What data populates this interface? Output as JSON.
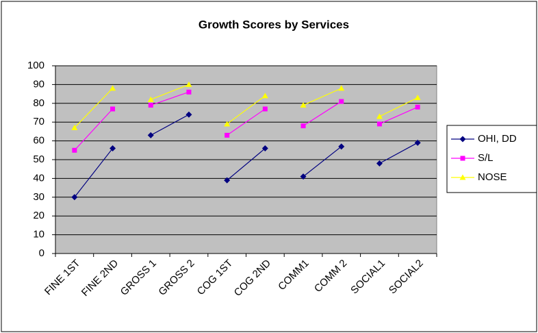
{
  "chart_data": {
    "type": "line",
    "title": "Growth Scores by Services",
    "categories": [
      "FINE 1ST",
      "FINE 2ND",
      "GROSS 1",
      "GROSS 2",
      "COG 1ST",
      "COG 2ND",
      "COMM1",
      "COMM 2",
      "SOCIAL1",
      "SOCIAL2"
    ],
    "series": [
      {
        "name": "OHI, DD",
        "color": "#000080",
        "marker": "diamond",
        "values": [
          30,
          56,
          63,
          74,
          39,
          56,
          41,
          57,
          48,
          59
        ]
      },
      {
        "name": "S/L",
        "color": "#ff00ff",
        "marker": "square",
        "values": [
          55,
          77,
          79,
          86,
          63,
          77,
          68,
          81,
          69,
          78
        ]
      },
      {
        "name": "NOSE",
        "color": "#ffff00",
        "marker": "triangle",
        "values": [
          67,
          88,
          82,
          90,
          69,
          84,
          79,
          88,
          73,
          83
        ]
      }
    ],
    "ylim": [
      0,
      100
    ],
    "yticks": [
      0,
      10,
      20,
      30,
      40,
      50,
      60,
      70,
      80,
      90,
      100
    ],
    "grid": true,
    "plot_background": "#c0c0c0",
    "legend": "right"
  }
}
